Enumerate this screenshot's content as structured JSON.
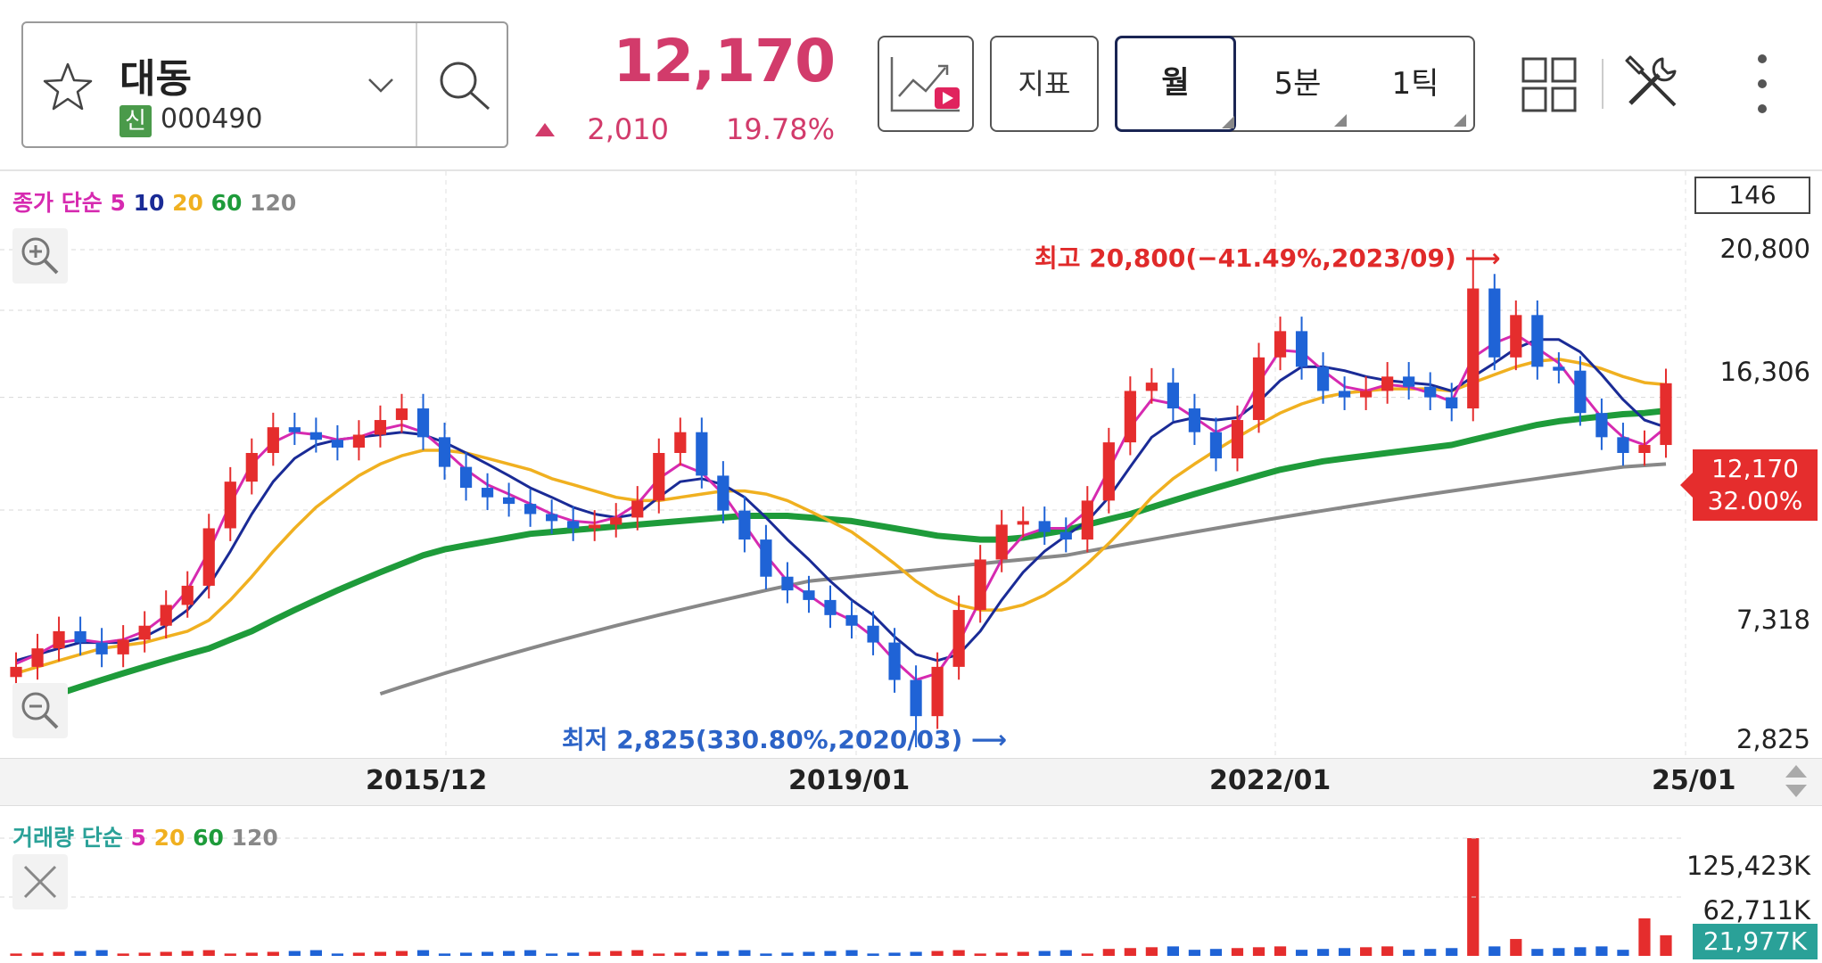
{
  "stock": {
    "name": "대동",
    "badge": "신",
    "code": "000490",
    "price": "12,170",
    "change": "2,010",
    "change_pct": "19.78%"
  },
  "toolbar": {
    "indicator_label": "지표",
    "periods": [
      "월",
      "5분",
      "1틱"
    ],
    "selected_period": "월"
  },
  "icons": [
    "star-icon",
    "chevron-down-icon",
    "search-icon",
    "chart-play-icon",
    "grid-layout-icon",
    "tools-icon",
    "more-vertical-icon",
    "zoom-in-icon",
    "zoom-out-icon",
    "close-icon"
  ],
  "price_chart": {
    "legend": {
      "prefix": "종가 단순",
      "periods": [
        "5",
        "10",
        "20",
        "60",
        "120"
      ],
      "colors": [
        "#d62ab0",
        "#1a2b96",
        "#f0b020",
        "#1e9b3a",
        "#888888"
      ]
    },
    "count": "146",
    "y_ticks": [
      "20,800",
      "16,306",
      "7,318",
      "2,825"
    ],
    "x_ticks": [
      "2015/12",
      "2019/01",
      "2022/01",
      "25/01"
    ],
    "last_price": "12,170",
    "last_pct": "32.00%",
    "high_annotation": "최고 20,800(−41.49%,2023/09)",
    "low_annotation": "최저 2,825(330.80%,2020/03)"
  },
  "volume_chart": {
    "legend": {
      "prefix": "거래량 단순",
      "periods": [
        "5",
        "20",
        "60",
        "120"
      ],
      "colors": [
        "#d62ab0",
        "#f0b020",
        "#1e9b3a",
        "#888888"
      ]
    },
    "y_ticks": [
      "125,423K",
      "62,711K"
    ],
    "last_volume": "21,977K"
  },
  "colors": {
    "up": "#e52d2d",
    "down": "#1f63d6",
    "accent": "#d23b6b"
  },
  "chart_data": {
    "type": "candlestick",
    "yscale": "log",
    "ylim": [
      2825,
      20800
    ],
    "x_range": [
      "2013/09",
      "2025/01"
    ],
    "high": {
      "value": 20800,
      "date": "2023/09"
    },
    "low": {
      "value": 2825,
      "date": "2020/03"
    },
    "close_series": [
      3900,
      4200,
      4500,
      4300,
      4100,
      4350,
      4600,
      5000,
      5400,
      6800,
      8200,
      9200,
      10200,
      10000,
      9700,
      9400,
      9900,
      10500,
      11000,
      9800,
      8700,
      8000,
      7700,
      7500,
      7200,
      7000,
      6800,
      6900,
      7100,
      7600,
      9200,
      10000,
      8400,
      7300,
      6500,
      5600,
      5300,
      5100,
      4800,
      4600,
      4300,
      3700,
      3200,
      3900,
      4900,
      6000,
      6900,
      7000,
      6700,
      6500,
      7600,
      9600,
      11800,
      12200,
      11000,
      10000,
      9000,
      10500,
      13500,
      15000,
      13000,
      11800,
      11500,
      11800,
      12500,
      12000,
      11500,
      11000,
      17800,
      13500,
      16000,
      13000,
      12800,
      10800,
      9800,
      9200,
      9500,
      12170
    ],
    "ma_lines": {
      "ma5": [
        3950,
        4100,
        4300,
        4350,
        4300,
        4350,
        4500,
        4800,
        5300,
        6200,
        7500,
        8800,
        9600,
        10000,
        9900,
        9700,
        9800,
        10100,
        10300,
        10000,
        9300,
        8600,
        8100,
        7800,
        7500,
        7200,
        7000,
        6950,
        7100,
        7500,
        8300,
        8800,
        8500,
        7800,
        6900,
        6100,
        5500,
        5200,
        4900,
        4700,
        4400,
        4000,
        3700,
        3800,
        4300,
        5100,
        6000,
        6600,
        6800,
        6800,
        7300,
        8600,
        10200,
        11400,
        11200,
        10600,
        10000,
        10400,
        12200,
        13900,
        13800,
        12800,
        12000,
        11800,
        12100,
        12000,
        11700,
        11300,
        13500,
        14300,
        14800,
        14000,
        13200,
        11800,
        10600,
        9800,
        9500,
        10200
      ],
      "ma10": [
        4000,
        4100,
        4200,
        4300,
        4300,
        4300,
        4400,
        4600,
        4900,
        5400,
        6200,
        7200,
        8200,
        9000,
        9500,
        9700,
        9800,
        9900,
        10000,
        9900,
        9600,
        9200,
        8800,
        8400,
        8000,
        7700,
        7400,
        7200,
        7100,
        7200,
        7700,
        8200,
        8300,
        8100,
        7700,
        7100,
        6500,
        6000,
        5500,
        5100,
        4800,
        4400,
        4100,
        4000,
        4100,
        4500,
        5100,
        5700,
        6200,
        6600,
        7000,
        7700,
        8700,
        9800,
        10400,
        10600,
        10500,
        10600,
        11300,
        12300,
        13000,
        13000,
        12800,
        12500,
        12300,
        12200,
        12100,
        11800,
        12500,
        13200,
        14000,
        14500,
        14500,
        13800,
        12600,
        11400,
        10500,
        10200
      ],
      "ma20": [
        3800,
        3900,
        4000,
        4100,
        4200,
        4250,
        4300,
        4400,
        4500,
        4700,
        5100,
        5600,
        6200,
        6800,
        7400,
        7900,
        8400,
        8800,
        9100,
        9300,
        9300,
        9200,
        9000,
        8800,
        8600,
        8300,
        8100,
        7900,
        7700,
        7600,
        7600,
        7700,
        7800,
        7900,
        7900,
        7800,
        7600,
        7300,
        7000,
        6700,
        6300,
        5900,
        5500,
        5200,
        5000,
        4900,
        4900,
        5000,
        5200,
        5500,
        5900,
        6400,
        7000,
        7700,
        8300,
        8800,
        9300,
        9800,
        10300,
        10800,
        11200,
        11500,
        11700,
        11800,
        11900,
        11900,
        11900,
        11800,
        12200,
        12600,
        13000,
        13300,
        13400,
        13200,
        12900,
        12500,
        12200,
        12100
      ],
      "ma60": [
        3300,
        3400,
        3500,
        3600,
        3700,
        3800,
        3900,
        4000,
        4100,
        4200,
        4350,
        4500,
        4700,
        4900,
        5100,
        5300,
        5500,
        5700,
        5900,
        6100,
        6250,
        6350,
        6450,
        6550,
        6650,
        6700,
        6750,
        6800,
        6850,
        6900,
        6950,
        7000,
        7050,
        7100,
        7150,
        7150,
        7150,
        7100,
        7050,
        7000,
        6900,
        6800,
        6700,
        6600,
        6550,
        6500,
        6500,
        6550,
        6650,
        6750,
        6900,
        7050,
        7200,
        7400,
        7600,
        7800,
        8000,
        8200,
        8400,
        8600,
        8750,
        8900,
        9000,
        9100,
        9200,
        9300,
        9400,
        9500,
        9700,
        9900,
        10100,
        10300,
        10450,
        10550,
        10650,
        10750,
        10800,
        10900
      ],
      "ma120": [
        null,
        null,
        null,
        null,
        null,
        null,
        null,
        null,
        null,
        null,
        null,
        null,
        null,
        null,
        null,
        null,
        null,
        3500,
        3600,
        3700,
        3800,
        3900,
        4000,
        4100,
        4200,
        4300,
        4400,
        4500,
        4600,
        4700,
        4800,
        4900,
        5000,
        5100,
        5200,
        5300,
        5400,
        5500,
        5550,
        5600,
        5650,
        5700,
        5750,
        5800,
        5850,
        5900,
        5950,
        6000,
        6050,
        6100,
        6200,
        6300,
        6400,
        6500,
        6600,
        6700,
        6800,
        6900,
        7000,
        7100,
        7200,
        7300,
        7400,
        7500,
        7600,
        7700,
        7800,
        7900,
        8000,
        8100,
        8200,
        8300,
        8400,
        8500,
        8600,
        8700,
        8750,
        8800
      ]
    },
    "volume": {
      "ylim": [
        0,
        125423
      ],
      "last": 21977,
      "peak": 125423,
      "series_note": "mostly low; spike ~125,423K near 2023/09 and ~40K near 25/01"
    }
  }
}
